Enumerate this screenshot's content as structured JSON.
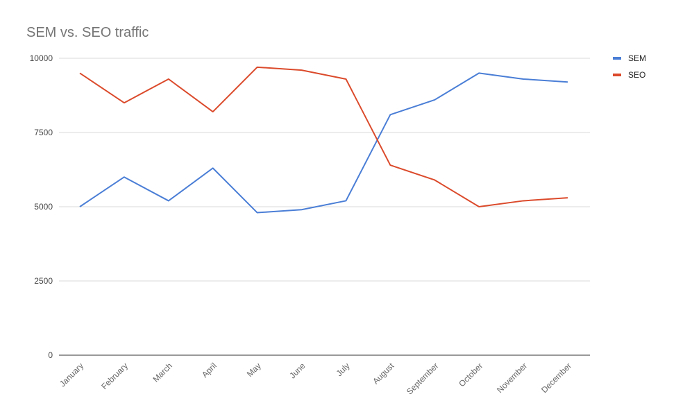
{
  "chart_data": {
    "type": "line",
    "title": "SEM vs. SEO traffic",
    "xlabel": "",
    "ylabel": "",
    "categories": [
      "January",
      "February",
      "March",
      "April",
      "May",
      "June",
      "July",
      "August",
      "September",
      "October",
      "November",
      "December"
    ],
    "series": [
      {
        "name": "SEM",
        "color": "#4a7ed6",
        "values": [
          5000,
          6000,
          5200,
          6300,
          4800,
          4900,
          5200,
          8100,
          8600,
          9500,
          9300,
          9200
        ]
      },
      {
        "name": "SEO",
        "color": "#db4a2b",
        "values": [
          9500,
          8500,
          9300,
          8200,
          9700,
          9600,
          9300,
          6400,
          5900,
          5000,
          5200,
          5300
        ]
      }
    ],
    "ylim": [
      0,
      10000
    ],
    "yticks": [
      0,
      2500,
      5000,
      7500,
      10000
    ],
    "grid": true,
    "legend": "right-top"
  }
}
